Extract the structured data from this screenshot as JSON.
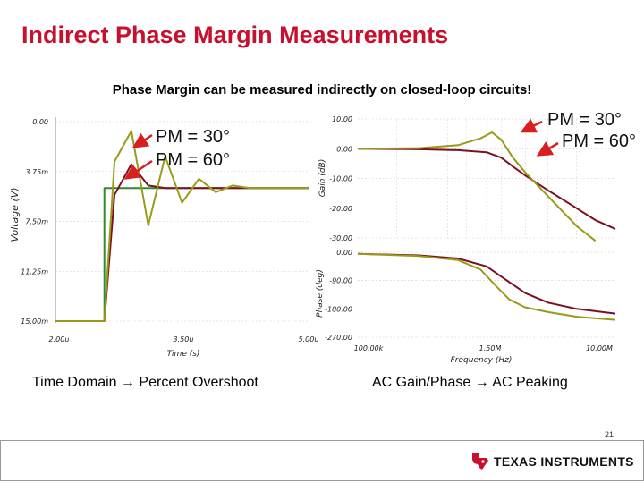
{
  "slide": {
    "title": "Indirect Phase Margin Measurements",
    "subtitle": "Phase Margin can be measured indirectly on closed-loop circuits!",
    "caption_left": "Time Domain → Percent Overshoot",
    "caption_right": "AC Gain/Phase → AC Peaking",
    "page_number": "21",
    "logo_text": "TEXAS INSTRUMENTS",
    "logo_icon": "texas-state-icon"
  },
  "colors": {
    "title": "#c8102e",
    "pm30": "#9a9a1a",
    "pm60": "#7a1020",
    "input_step": "#2e8b2e",
    "arrow": "#d81e1e"
  },
  "chart_data": [
    {
      "type": "line",
      "panel": "time-domain",
      "xlabel": "Time (s)",
      "ylabel": "Voltage (V)",
      "xlim": [
        2e-06,
        5e-06
      ],
      "ylim": [
        0,
        0.015
      ],
      "x_ticks": [
        "2.00u",
        "3.50u",
        "5.00u"
      ],
      "y_ticks": [
        "0.00",
        "3.75m",
        "7.50m",
        "11.25m",
        "15.00m"
      ],
      "annotations": [
        "PM = 30°",
        "PM = 60°"
      ],
      "series": [
        {
          "key": "input",
          "color": "#2e8b2e",
          "x": [
            2e-06,
            2.58e-06,
            2.58e-06,
            5e-06
          ],
          "y": [
            0,
            0,
            0.01,
            0.01
          ]
        },
        {
          "key": "pm60",
          "color": "#7a1020",
          "x": [
            2e-06,
            2.58e-06,
            2.7e-06,
            2.9e-06,
            3.1e-06,
            3.3e-06,
            3.6e-06,
            4e-06,
            5e-06
          ],
          "y": [
            0,
            0,
            0.0095,
            0.0118,
            0.0102,
            0.01,
            0.01,
            0.01,
            0.01
          ]
        },
        {
          "key": "pm30",
          "color": "#9a9a1a",
          "x": [
            2e-06,
            2.58e-06,
            2.7e-06,
            2.9e-06,
            3.1e-06,
            3.3e-06,
            3.5e-06,
            3.7e-06,
            3.9e-06,
            4.1e-06,
            4.3e-06,
            5e-06
          ],
          "y": [
            0,
            0,
            0.012,
            0.0143,
            0.0072,
            0.0124,
            0.0089,
            0.0107,
            0.0097,
            0.0102,
            0.01,
            0.01
          ]
        }
      ]
    },
    {
      "type": "line",
      "panel": "gain",
      "ylabel": "Gain (dB)",
      "x_scale": "log",
      "xlim": [
        100000,
        10000000
      ],
      "ylim": [
        -30,
        10
      ],
      "y_ticks": [
        "10.00",
        "0.00",
        "-10.00",
        "-20.00",
        "-30.00"
      ],
      "series": [
        {
          "key": "pm60",
          "color": "#7a1020",
          "x": [
            100000,
            300000,
            600000,
            1000000,
            1300000,
            1600000,
            2000000,
            3000000,
            5000000,
            7000000,
            10000000
          ],
          "y": [
            0,
            -0.2,
            -0.5,
            -1.2,
            -3,
            -6,
            -9,
            -14,
            -20,
            -24,
            -27
          ]
        },
        {
          "key": "pm30",
          "color": "#9a9a1a",
          "x": [
            100000,
            300000,
            600000,
            900000,
            1100000,
            1300000,
            1600000,
            2000000,
            3000000,
            5000000,
            7000000
          ],
          "y": [
            0,
            0.2,
            1.2,
            3.5,
            5.5,
            3,
            -3,
            -8,
            -16,
            -26,
            -31
          ]
        }
      ]
    },
    {
      "type": "line",
      "panel": "phase",
      "xlabel": "Frequency (Hz)",
      "ylabel": "Phase (deg)",
      "x_scale": "log",
      "xlim": [
        100000,
        10000000
      ],
      "ylim": [
        -270,
        0
      ],
      "x_ticks": [
        "100.00k",
        "1.50M",
        "10.00M"
      ],
      "y_ticks": [
        "0.00",
        "-90.00",
        "-180.00",
        "-270.00"
      ],
      "series": [
        {
          "key": "pm60",
          "color": "#7a1020",
          "x": [
            100000,
            300000,
            600000,
            1000000,
            1500000,
            2000000,
            3000000,
            5000000,
            10000000
          ],
          "y": [
            -5,
            -10,
            -20,
            -45,
            -95,
            -130,
            -160,
            -180,
            -195
          ]
        },
        {
          "key": "pm30",
          "color": "#9a9a1a",
          "x": [
            100000,
            300000,
            600000,
            900000,
            1200000,
            1500000,
            2000000,
            3000000,
            5000000,
            10000000
          ],
          "y": [
            -5,
            -12,
            -25,
            -55,
            -110,
            -150,
            -175,
            -190,
            -205,
            -215
          ]
        }
      ]
    }
  ]
}
